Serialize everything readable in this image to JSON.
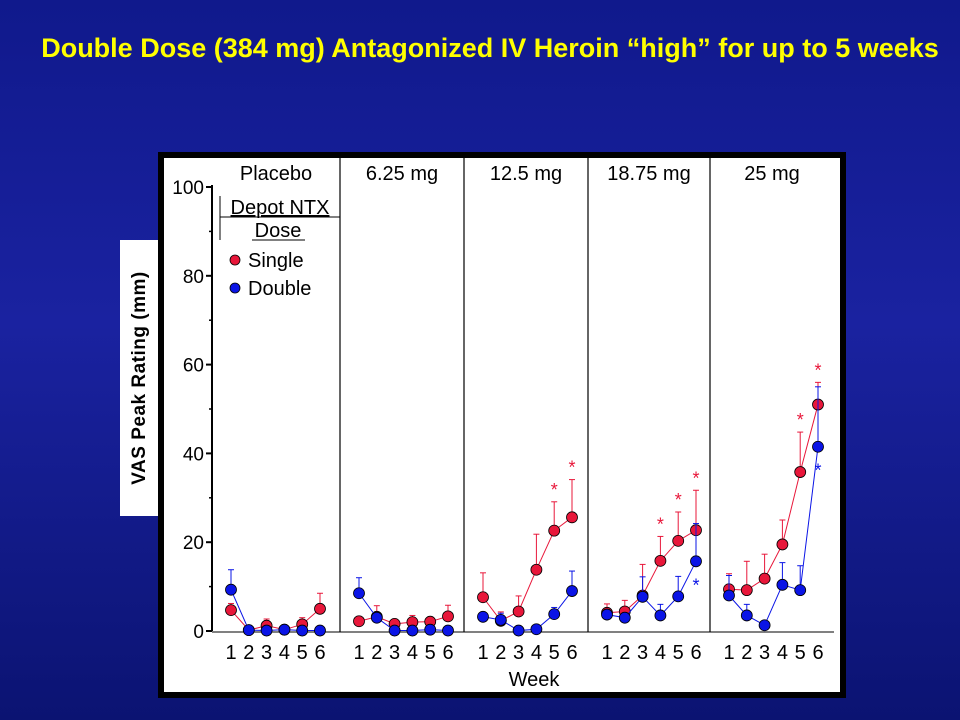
{
  "slide": {
    "title": "Double Dose (384 mg) Antagonized IV Heroin “high” for up to 5 weeks"
  },
  "colors": {
    "background": "#1a22a0",
    "title": "#ffff00",
    "single": "#e8173a",
    "double": "#0a14e6"
  },
  "chart_data": {
    "type": "line",
    "ylabel": "VAS Peak Rating (mm)",
    "xlabel": "Week",
    "ylim": [
      0,
      100
    ],
    "yticks": [
      0,
      20,
      40,
      60,
      80,
      100
    ],
    "x": [
      1,
      2,
      3,
      4,
      5,
      6
    ],
    "legend": {
      "title": "Depot NTX Dose",
      "entries": [
        "Single",
        "Double"
      ],
      "placement": "inside first panel, top-left"
    },
    "panels": [
      {
        "label": "Placebo",
        "series": [
          {
            "name": "Single",
            "values": [
              4.7,
              0.2,
              1.2,
              0.3,
              1.5,
              5.0
            ],
            "err": [
              1.5,
              0,
              1.5,
              0,
              1.5,
              3.5
            ],
            "stars": []
          },
          {
            "name": "Double",
            "values": [
              9.3,
              0.2,
              0.1,
              0.3,
              0.1,
              0.1
            ],
            "err": [
              4.5,
              0,
              0,
              0,
              0,
              0
            ],
            "stars": []
          }
        ]
      },
      {
        "label": "6.25 mg",
        "series": [
          {
            "name": "Single",
            "values": [
              2.2,
              3.2,
              1.6,
              2.0,
              2.1,
              3.3
            ],
            "err": [
              1.0,
              2.5,
              1.0,
              1.5,
              1.0,
              2.5
            ],
            "stars": []
          },
          {
            "name": "Double",
            "values": [
              8.5,
              3.0,
              0.1,
              0.1,
              0.3,
              0.1
            ],
            "err": [
              3.5,
              0,
              0,
              0,
              0,
              0
            ],
            "stars": []
          }
        ]
      },
      {
        "label": "12.5 mg",
        "series": [
          {
            "name": "Single",
            "values": [
              7.6,
              2.3,
              4.4,
              13.8,
              22.6,
              25.6
            ],
            "err": [
              5.5,
              2.0,
              3.5,
              8.0,
              6.5,
              8.5
            ],
            "stars": [
              5,
              6
            ]
          },
          {
            "name": "Double",
            "values": [
              3.2,
              2.5,
              0.1,
              0.4,
              3.8,
              9.0
            ],
            "err": [
              0,
              1.5,
              0,
              0,
              1.5,
              4.5
            ],
            "stars": []
          }
        ]
      },
      {
        "label": "18.75 mg",
        "series": [
          {
            "name": "Single",
            "values": [
              4.1,
              4.4,
              8.0,
              15.8,
              20.3,
              22.7
            ],
            "err": [
              2.0,
              2.5,
              7.0,
              5.5,
              6.5,
              9.0
            ],
            "stars": [
              4,
              5,
              6
            ]
          },
          {
            "name": "Double",
            "values": [
              3.7,
              3.0,
              7.7,
              3.5,
              7.8,
              15.7
            ],
            "err": [
              1.0,
              1.0,
              4.5,
              2.5,
              4.5,
              8.5
            ],
            "stars": [
              6
            ]
          }
        ]
      },
      {
        "label": "25 mg",
        "series": [
          {
            "name": "Single",
            "values": [
              9.4,
              9.2,
              11.8,
              19.5,
              35.8,
              51.0
            ],
            "err": [
              3.5,
              6.5,
              5.5,
              5.5,
              9.0,
              5.0
            ],
            "stars": [
              5,
              6
            ]
          },
          {
            "name": "Double",
            "values": [
              8.0,
              3.5,
              1.3,
              10.4,
              9.2,
              41.5
            ],
            "err": [
              4.5,
              2.5,
              0,
              5.0,
              5.5,
              13.5
            ],
            "stars": [
              6
            ]
          }
        ]
      }
    ]
  }
}
